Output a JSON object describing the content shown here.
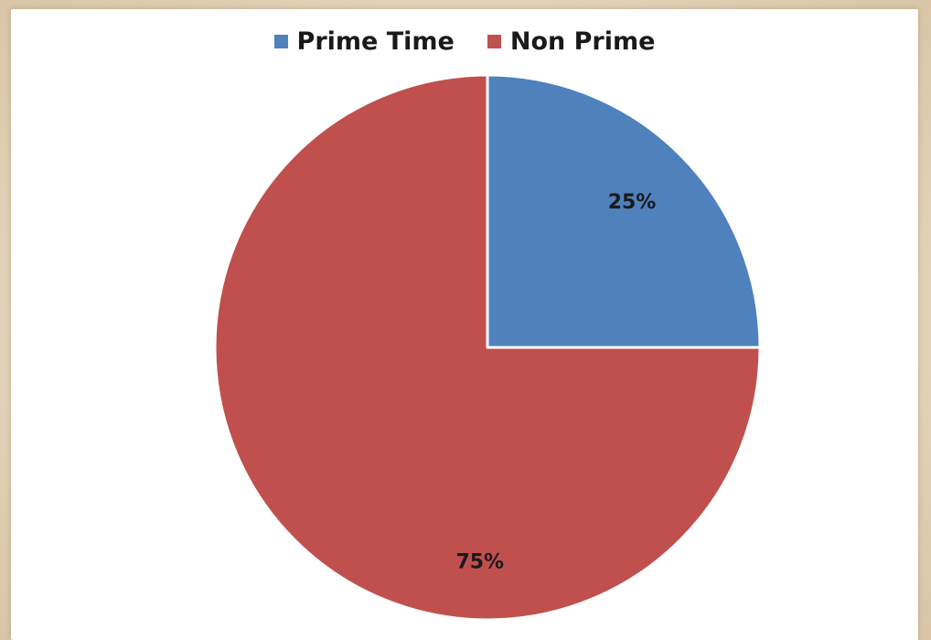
{
  "chart_data": {
    "type": "pie",
    "title": "",
    "legend_position": "top",
    "slices": [
      {
        "name": "Prime Time",
        "value": 25,
        "label": "25%",
        "color": "#4f81bd"
      },
      {
        "name": "Non Prime",
        "value": 75,
        "label": "75%",
        "color": "#c0504d"
      }
    ]
  },
  "legend": {
    "items": [
      {
        "label": "Prime Time",
        "color": "#4f81bd"
      },
      {
        "label": "Non Prime",
        "color": "#c0504d"
      }
    ]
  }
}
